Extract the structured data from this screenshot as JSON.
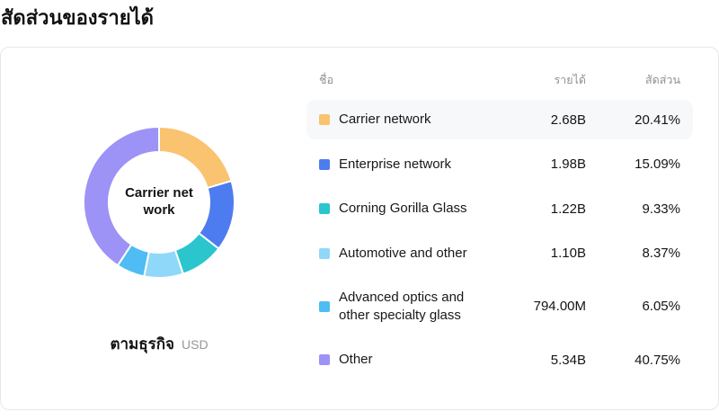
{
  "page": {
    "title": "สัดส่วนของรายได้"
  },
  "table": {
    "headers": {
      "name": "ชื่อ",
      "revenue": "รายได้",
      "share": "สัดส่วน"
    }
  },
  "footer": {
    "label": "ตามธุรกิจ",
    "unit": "USD"
  },
  "chart_data": {
    "type": "pie",
    "donut": true,
    "title": "สัดส่วนของรายได้",
    "unit": "USD",
    "legend_position": "right",
    "center_label": "Carrier network",
    "center_label_lines": [
      "Carrier net",
      "work"
    ],
    "categories": [
      "Carrier network",
      "Enterprise network",
      "Corning Gorilla Glass",
      "Automotive and other",
      "Advanced optics and other specialty glass",
      "Other"
    ],
    "values": [
      20.41,
      15.09,
      9.33,
      8.37,
      6.05,
      40.75
    ],
    "segments": [
      {
        "label": "Carrier network",
        "revenue": "2.68B",
        "share": "20.41%",
        "value": 20.41,
        "color": "#FAC36F",
        "highlighted": true
      },
      {
        "label": "Enterprise network",
        "revenue": "1.98B",
        "share": "15.09%",
        "value": 15.09,
        "color": "#4D7CF0",
        "highlighted": false
      },
      {
        "label": "Corning Gorilla Glass",
        "revenue": "1.22B",
        "share": "9.33%",
        "value": 9.33,
        "color": "#2BC5CD",
        "highlighted": false
      },
      {
        "label": "Automotive and other",
        "revenue": "1.10B",
        "share": "8.37%",
        "value": 8.37,
        "color": "#8FD8FA",
        "highlighted": false
      },
      {
        "label": "Advanced optics and other specialty glass",
        "revenue": "794.00M",
        "share": "6.05%",
        "value": 6.05,
        "color": "#4FBCF4",
        "highlighted": false
      },
      {
        "label": "Other",
        "revenue": "5.34B",
        "share": "40.75%",
        "value": 40.75,
        "color": "#9D92F6",
        "highlighted": false
      }
    ]
  }
}
